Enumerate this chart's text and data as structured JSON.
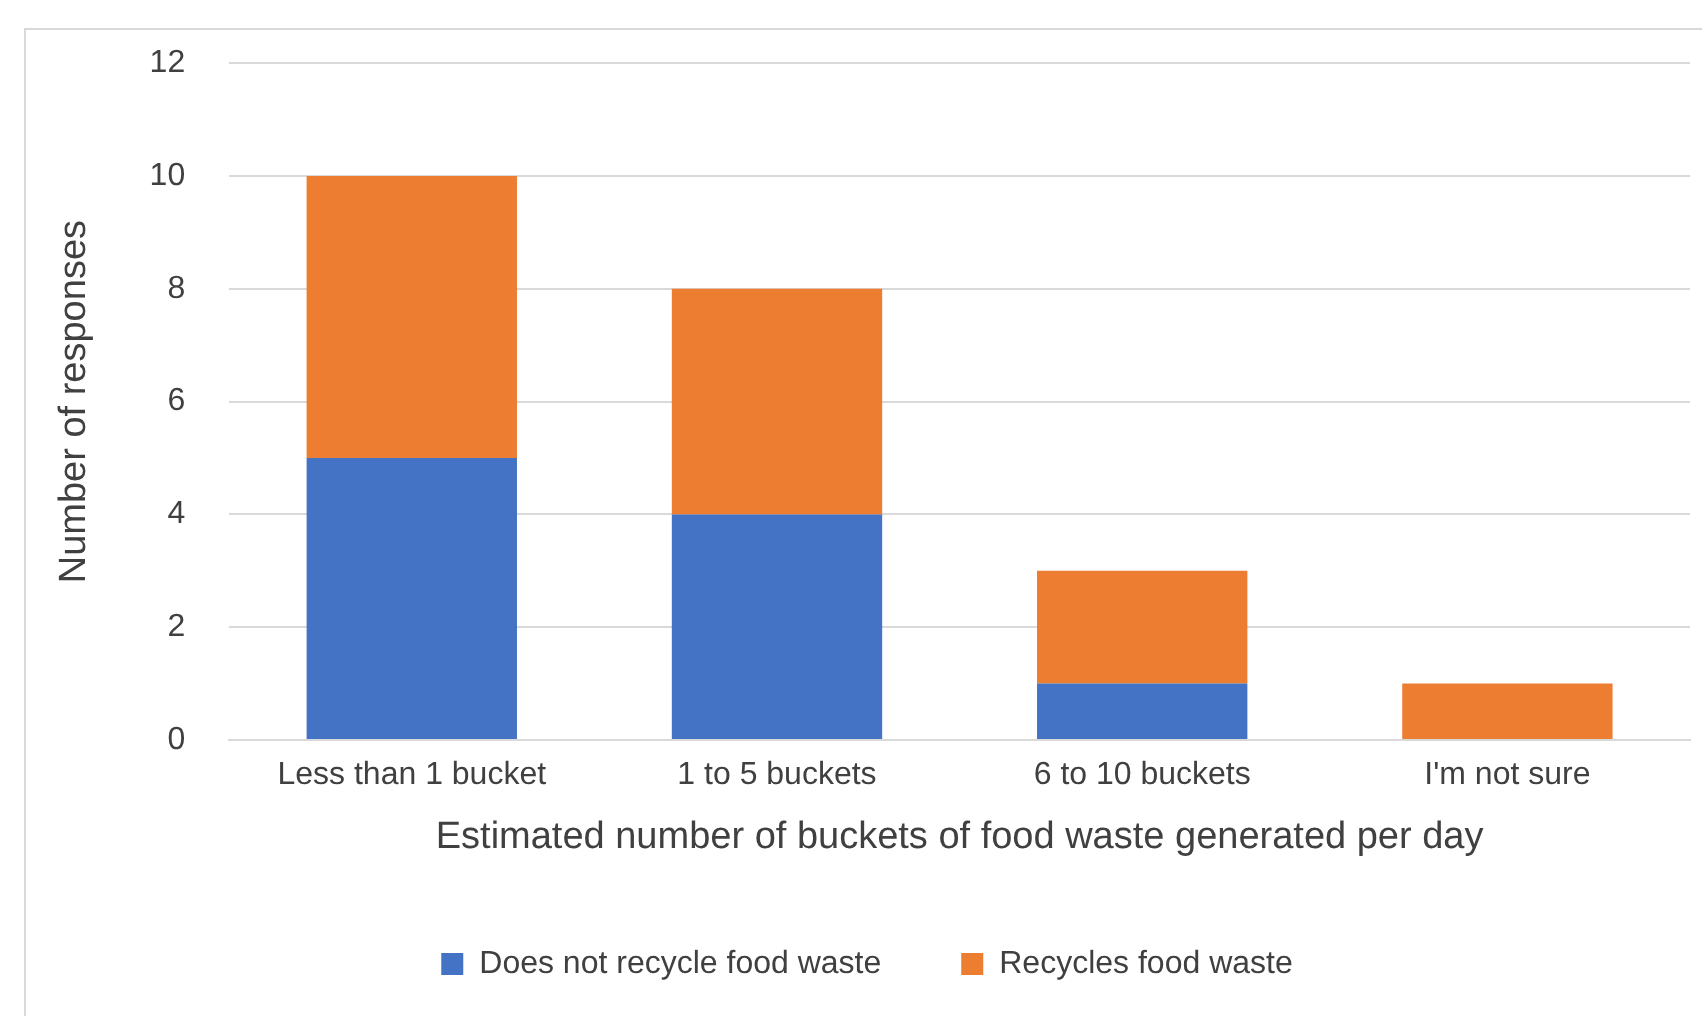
{
  "chart_data": {
    "type": "bar",
    "stacked": true,
    "xlabel": "Estimated number of buckets of food waste generated per day",
    "ylabel": "Number of responses",
    "categories": [
      "Less than 1 bucket",
      "1 to 5 buckets",
      "6 to 10 buckets",
      "I'm not sure"
    ],
    "series": [
      {
        "name": "Does not recycle food waste",
        "color": "#4472c4",
        "values": [
          5,
          4,
          1,
          0
        ]
      },
      {
        "name": "Recycles food waste",
        "color": "#ed7d31",
        "values": [
          5,
          4,
          2,
          1
        ]
      }
    ],
    "ylim": [
      0,
      12
    ],
    "yticks": [
      0,
      2,
      4,
      6,
      8,
      10,
      12
    ],
    "grid": "y",
    "legend": "bottom"
  }
}
